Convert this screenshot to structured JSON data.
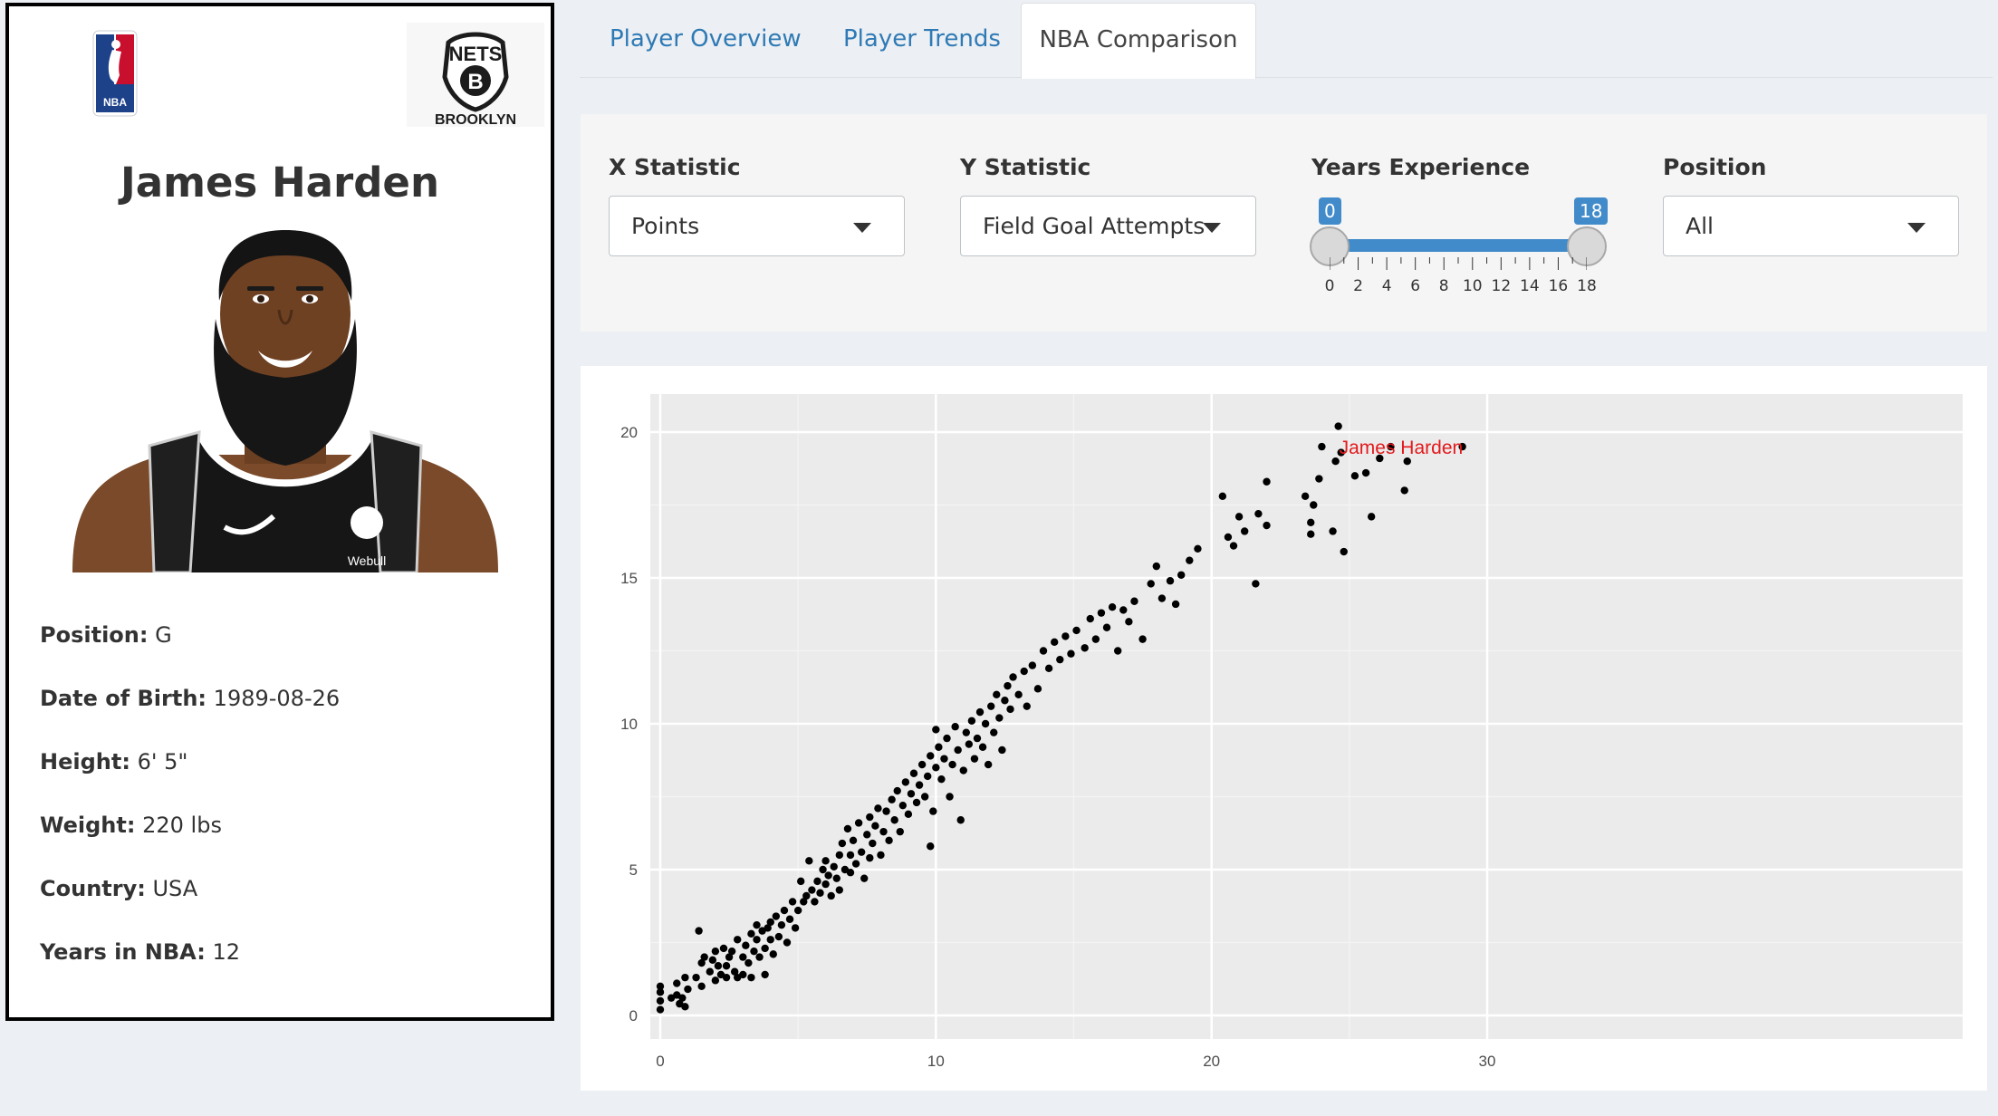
{
  "player": {
    "name": "James Harden",
    "info": [
      {
        "label": "Position:",
        "value": "G"
      },
      {
        "label": "Date of Birth:",
        "value": "1989-08-26"
      },
      {
        "label": "Height:",
        "value": "6' 5\""
      },
      {
        "label": "Weight:",
        "value": "220 lbs"
      },
      {
        "label": "Country:",
        "value": "USA"
      },
      {
        "label": "Years in NBA:",
        "value": "12"
      }
    ],
    "jersey_sponsor": "Webull"
  },
  "logos": {
    "league_text": "NBA",
    "team_top": "NETS",
    "team_bottom": "BROOKLYN",
    "team_letter": "B"
  },
  "tabs": [
    {
      "label": "Player Overview",
      "active": false
    },
    {
      "label": "Player Trends",
      "active": false
    },
    {
      "label": "NBA Comparison",
      "active": true
    }
  ],
  "controls": {
    "x_label": "X Statistic",
    "x_value": "Points",
    "y_label": "Y Statistic",
    "y_value": "Field Goal Attempts",
    "years_label": "Years Experience",
    "years_min": "0",
    "years_max": "18",
    "years_ticks": [
      "0",
      "2",
      "4",
      "6",
      "8",
      "10",
      "12",
      "14",
      "16",
      "18"
    ],
    "position_label": "Position",
    "position_value": "All"
  },
  "colors": {
    "accent": "#428bca",
    "tab_link": "#2f7ab5",
    "highlight": "#e41a1c",
    "plot_bg": "#ebebeb"
  },
  "chart_data": {
    "type": "scatter",
    "title": "",
    "xlabel": "",
    "ylabel": "",
    "xlim": [
      0,
      30
    ],
    "ylim": [
      0,
      20
    ],
    "x_ticks": [
      "0",
      "10",
      "20",
      "30"
    ],
    "y_ticks": [
      "0",
      "5",
      "10",
      "15",
      "20"
    ],
    "grid": true,
    "highlight": {
      "label": "James Harden",
      "x": 29.1,
      "y": 19.5
    },
    "points": [
      [
        0,
        0.2
      ],
      [
        0,
        0.5
      ],
      [
        0,
        0.8
      ],
      [
        0,
        1.0
      ],
      [
        0.4,
        0.6
      ],
      [
        0.6,
        0.7
      ],
      [
        0.7,
        0.4
      ],
      [
        0.8,
        0.6
      ],
      [
        0.9,
        0.3
      ],
      [
        0.6,
        1.1
      ],
      [
        0.9,
        1.3
      ],
      [
        1.0,
        0.9
      ],
      [
        1.3,
        1.3
      ],
      [
        1.4,
        2.9
      ],
      [
        1.5,
        1.0
      ],
      [
        1.5,
        1.8
      ],
      [
        1.6,
        2.0
      ],
      [
        1.8,
        1.5
      ],
      [
        1.9,
        1.9
      ],
      [
        2.0,
        1.2
      ],
      [
        2.0,
        2.2
      ],
      [
        2.1,
        1.7
      ],
      [
        2.2,
        1.4
      ],
      [
        2.3,
        2.3
      ],
      [
        2.4,
        1.3
      ],
      [
        2.4,
        1.7
      ],
      [
        2.5,
        2.0
      ],
      [
        2.6,
        2.2
      ],
      [
        2.7,
        1.5
      ],
      [
        2.8,
        1.3
      ],
      [
        2.8,
        2.6
      ],
      [
        3.0,
        2.0
      ],
      [
        3.0,
        1.4
      ],
      [
        3.1,
        2.4
      ],
      [
        3.2,
        1.8
      ],
      [
        3.3,
        2.8
      ],
      [
        3.3,
        1.3
      ],
      [
        3.4,
        2.2
      ],
      [
        3.5,
        2.6
      ],
      [
        3.5,
        3.1
      ],
      [
        3.6,
        2.0
      ],
      [
        3.7,
        2.9
      ],
      [
        3.8,
        1.4
      ],
      [
        3.8,
        2.3
      ],
      [
        3.9,
        3.0
      ],
      [
        4.0,
        2.6
      ],
      [
        4.0,
        3.2
      ],
      [
        4.1,
        2.1
      ],
      [
        4.2,
        3.4
      ],
      [
        4.3,
        2.7
      ],
      [
        4.4,
        3.1
      ],
      [
        4.5,
        3.6
      ],
      [
        4.6,
        2.5
      ],
      [
        4.7,
        3.3
      ],
      [
        4.8,
        3.9
      ],
      [
        4.9,
        3.0
      ],
      [
        5.0,
        3.6
      ],
      [
        5.1,
        4.6
      ],
      [
        5.2,
        3.9
      ],
      [
        5.3,
        4.1
      ],
      [
        5.4,
        5.3
      ],
      [
        5.5,
        4.3
      ],
      [
        5.6,
        3.9
      ],
      [
        5.7,
        4.6
      ],
      [
        5.8,
        4.2
      ],
      [
        5.9,
        5.0
      ],
      [
        6.0,
        4.5
      ],
      [
        6.0,
        5.3
      ],
      [
        6.1,
        4.8
      ],
      [
        6.2,
        4.1
      ],
      [
        6.3,
        5.1
      ],
      [
        6.4,
        4.7
      ],
      [
        6.5,
        5.5
      ],
      [
        6.5,
        4.3
      ],
      [
        6.6,
        5.9
      ],
      [
        6.7,
        5.0
      ],
      [
        6.8,
        6.4
      ],
      [
        6.9,
        4.9
      ],
      [
        6.9,
        5.5
      ],
      [
        7.0,
        6.0
      ],
      [
        7.1,
        5.2
      ],
      [
        7.2,
        6.6
      ],
      [
        7.3,
        5.6
      ],
      [
        7.4,
        4.7
      ],
      [
        7.5,
        6.2
      ],
      [
        7.6,
        5.4
      ],
      [
        7.6,
        6.8
      ],
      [
        7.7,
        5.9
      ],
      [
        7.8,
        6.5
      ],
      [
        7.9,
        7.1
      ],
      [
        8.0,
        5.5
      ],
      [
        8.1,
        6.3
      ],
      [
        8.2,
        7.0
      ],
      [
        8.3,
        6.0
      ],
      [
        8.4,
        7.4
      ],
      [
        8.5,
        6.7
      ],
      [
        8.6,
        7.7
      ],
      [
        8.7,
        6.3
      ],
      [
        8.8,
        7.2
      ],
      [
        8.9,
        8.0
      ],
      [
        9.0,
        6.9
      ],
      [
        9.1,
        7.6
      ],
      [
        9.2,
        8.3
      ],
      [
        9.3,
        7.3
      ],
      [
        9.4,
        7.9
      ],
      [
        9.5,
        8.6
      ],
      [
        9.6,
        7.5
      ],
      [
        9.7,
        8.2
      ],
      [
        9.8,
        5.8
      ],
      [
        9.8,
        8.9
      ],
      [
        9.9,
        7.0
      ],
      [
        10.0,
        8.5
      ],
      [
        10.0,
        9.8
      ],
      [
        10.1,
        9.2
      ],
      [
        10.2,
        8.1
      ],
      [
        10.3,
        8.8
      ],
      [
        10.4,
        9.5
      ],
      [
        10.5,
        7.5
      ],
      [
        10.6,
        8.6
      ],
      [
        10.7,
        9.9
      ],
      [
        10.8,
        9.1
      ],
      [
        10.9,
        6.7
      ],
      [
        11.0,
        8.4
      ],
      [
        11.1,
        9.7
      ],
      [
        11.2,
        9.3
      ],
      [
        11.3,
        10.1
      ],
      [
        11.4,
        8.8
      ],
      [
        11.5,
        9.5
      ],
      [
        11.6,
        10.4
      ],
      [
        11.7,
        9.2
      ],
      [
        11.8,
        10.0
      ],
      [
        11.9,
        8.6
      ],
      [
        12.0,
        10.6
      ],
      [
        12.1,
        9.7
      ],
      [
        12.2,
        11.0
      ],
      [
        12.3,
        10.2
      ],
      [
        12.4,
        9.1
      ],
      [
        12.5,
        10.8
      ],
      [
        12.6,
        11.3
      ],
      [
        12.7,
        10.5
      ],
      [
        12.8,
        11.6
      ],
      [
        13.0,
        11.0
      ],
      [
        13.2,
        11.8
      ],
      [
        13.3,
        10.6
      ],
      [
        13.5,
        12.0
      ],
      [
        13.7,
        11.2
      ],
      [
        13.9,
        12.5
      ],
      [
        14.1,
        11.9
      ],
      [
        14.3,
        12.8
      ],
      [
        14.5,
        12.2
      ],
      [
        14.7,
        13.0
      ],
      [
        14.9,
        12.4
      ],
      [
        15.1,
        13.2
      ],
      [
        15.4,
        12.6
      ],
      [
        15.6,
        13.6
      ],
      [
        15.8,
        12.9
      ],
      [
        16.0,
        13.8
      ],
      [
        16.2,
        13.3
      ],
      [
        16.4,
        14.0
      ],
      [
        16.6,
        12.5
      ],
      [
        16.8,
        13.9
      ],
      [
        17.0,
        13.5
      ],
      [
        17.2,
        14.2
      ],
      [
        17.5,
        12.9
      ],
      [
        17.8,
        14.8
      ],
      [
        18.0,
        15.4
      ],
      [
        18.2,
        14.3
      ],
      [
        18.5,
        14.9
      ],
      [
        18.7,
        14.1
      ],
      [
        18.9,
        15.1
      ],
      [
        19.2,
        15.6
      ],
      [
        19.5,
        16.0
      ],
      [
        20.4,
        17.8
      ],
      [
        20.6,
        16.4
      ],
      [
        20.8,
        16.1
      ],
      [
        21.0,
        17.1
      ],
      [
        21.2,
        16.6
      ],
      [
        21.7,
        17.2
      ],
      [
        21.6,
        14.8
      ],
      [
        22.0,
        18.3
      ],
      [
        22.0,
        16.8
      ],
      [
        23.4,
        17.8
      ],
      [
        23.7,
        17.5
      ],
      [
        23.6,
        16.9
      ],
      [
        23.6,
        16.5
      ],
      [
        23.9,
        18.4
      ],
      [
        24.0,
        19.5
      ],
      [
        24.4,
        16.6
      ],
      [
        24.5,
        19.0
      ],
      [
        24.6,
        20.2
      ],
      [
        24.8,
        15.9
      ],
      [
        24.7,
        19.3
      ],
      [
        25.2,
        18.5
      ],
      [
        25.6,
        18.6
      ],
      [
        25.8,
        17.1
      ],
      [
        26.1,
        19.1
      ],
      [
        26.5,
        19.5
      ],
      [
        27.0,
        18.0
      ],
      [
        27.1,
        19.0
      ]
    ]
  }
}
